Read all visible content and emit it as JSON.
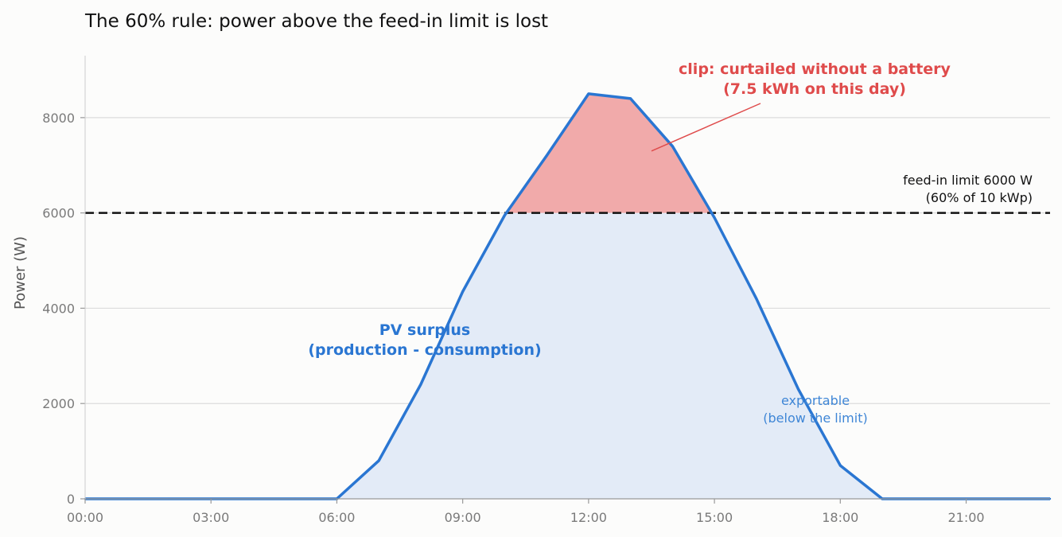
{
  "chart_data": {
    "type": "area",
    "title": "The 60% rule: power above the feed-in limit is lost",
    "xlabel": "",
    "ylabel": "Power (W)",
    "xlim": [
      0,
      23
    ],
    "ylim": [
      0,
      9300
    ],
    "x_ticks": [
      {
        "value": 0,
        "label": "00:00"
      },
      {
        "value": 3,
        "label": "03:00"
      },
      {
        "value": 6,
        "label": "06:00"
      },
      {
        "value": 9,
        "label": "09:00"
      },
      {
        "value": 12,
        "label": "12:00"
      },
      {
        "value": 15,
        "label": "15:00"
      },
      {
        "value": 18,
        "label": "18:00"
      },
      {
        "value": 21,
        "label": "21:00"
      }
    ],
    "y_ticks": [
      {
        "value": 0,
        "label": "0"
      },
      {
        "value": 2000,
        "label": "2000"
      },
      {
        "value": 4000,
        "label": "4000"
      },
      {
        "value": 6000,
        "label": "6000"
      },
      {
        "value": 8000,
        "label": "8000"
      }
    ],
    "grid": "horizontal",
    "x": [
      0,
      1,
      2,
      3,
      4,
      5,
      6,
      7,
      8,
      9,
      10,
      11,
      12,
      13,
      14,
      15,
      16,
      17,
      18,
      19,
      20,
      21,
      22,
      23
    ],
    "series": [
      {
        "name": "",
        "values": [
          0,
          0,
          0,
          0,
          0,
          0,
          0,
          800,
          2400,
          4350,
          5950,
          7200,
          8500,
          8400,
          7400,
          5900,
          4200,
          2300,
          700,
          0,
          0,
          0,
          0,
          0
        ],
        "color": "#2a76d2"
      }
    ],
    "feed_in_limit": 6000,
    "limit_color": "#111111",
    "clip_color": "#f1aaaa",
    "below_fill_color": "#e3ebf7",
    "annotations": {
      "limit": {
        "line1": "feed-in limit 6000 W",
        "line2": "(60% of 10 kWp)"
      },
      "clip": {
        "line1": "clip: curtailed without a battery",
        "line2": "(7.5 kWh on this day)",
        "color": "#df4b4b",
        "arrow_from": [
          13.5,
          7300
        ]
      },
      "surplus": {
        "line1": "PV surplus",
        "line2": "(production - consumption)",
        "color": "#2a76d2"
      },
      "exportable": {
        "line1": "exportable",
        "line2": "(below the limit)",
        "color": "#3f86d6"
      }
    }
  }
}
